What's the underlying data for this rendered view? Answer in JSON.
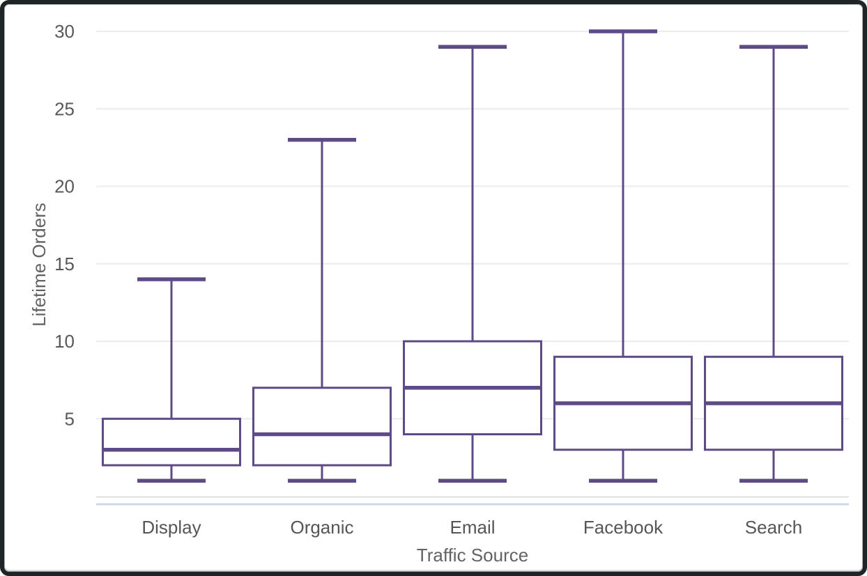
{
  "chart_data": {
    "type": "boxplot",
    "title": "",
    "xlabel": "Traffic Source",
    "ylabel": "Lifetime Orders",
    "categories": [
      "Display",
      "Organic",
      "Email",
      "Facebook",
      "Search"
    ],
    "boxes": [
      {
        "category": "Display",
        "min": 1,
        "q1": 2,
        "median": 3,
        "q3": 5,
        "max": 14
      },
      {
        "category": "Organic",
        "min": 1,
        "q1": 2,
        "median": 4,
        "q3": 7,
        "max": 23
      },
      {
        "category": "Email",
        "min": 1,
        "q1": 4,
        "median": 7,
        "q3": 10,
        "max": 29
      },
      {
        "category": "Facebook",
        "min": 1,
        "q1": 3,
        "median": 6,
        "q3": 9,
        "max": 30
      },
      {
        "category": "Search",
        "min": 1,
        "q1": 3,
        "median": 6,
        "q3": 9,
        "max": 29
      }
    ],
    "ylim": [
      0,
      31
    ],
    "yticks": [
      5,
      10,
      15,
      20,
      25,
      30
    ],
    "grid": true,
    "legend": false,
    "colors": {
      "box_stroke": "#5c4b87",
      "box_fill": "#ffffff",
      "gridline": "#ececec",
      "axis_line": "#dedede",
      "accent_line": "#ccd7ea",
      "tick_text": "#595959",
      "category_text": "#565656",
      "axis_title_text": "#636363",
      "frame": "#1f2426",
      "background": "#ffffff"
    }
  }
}
